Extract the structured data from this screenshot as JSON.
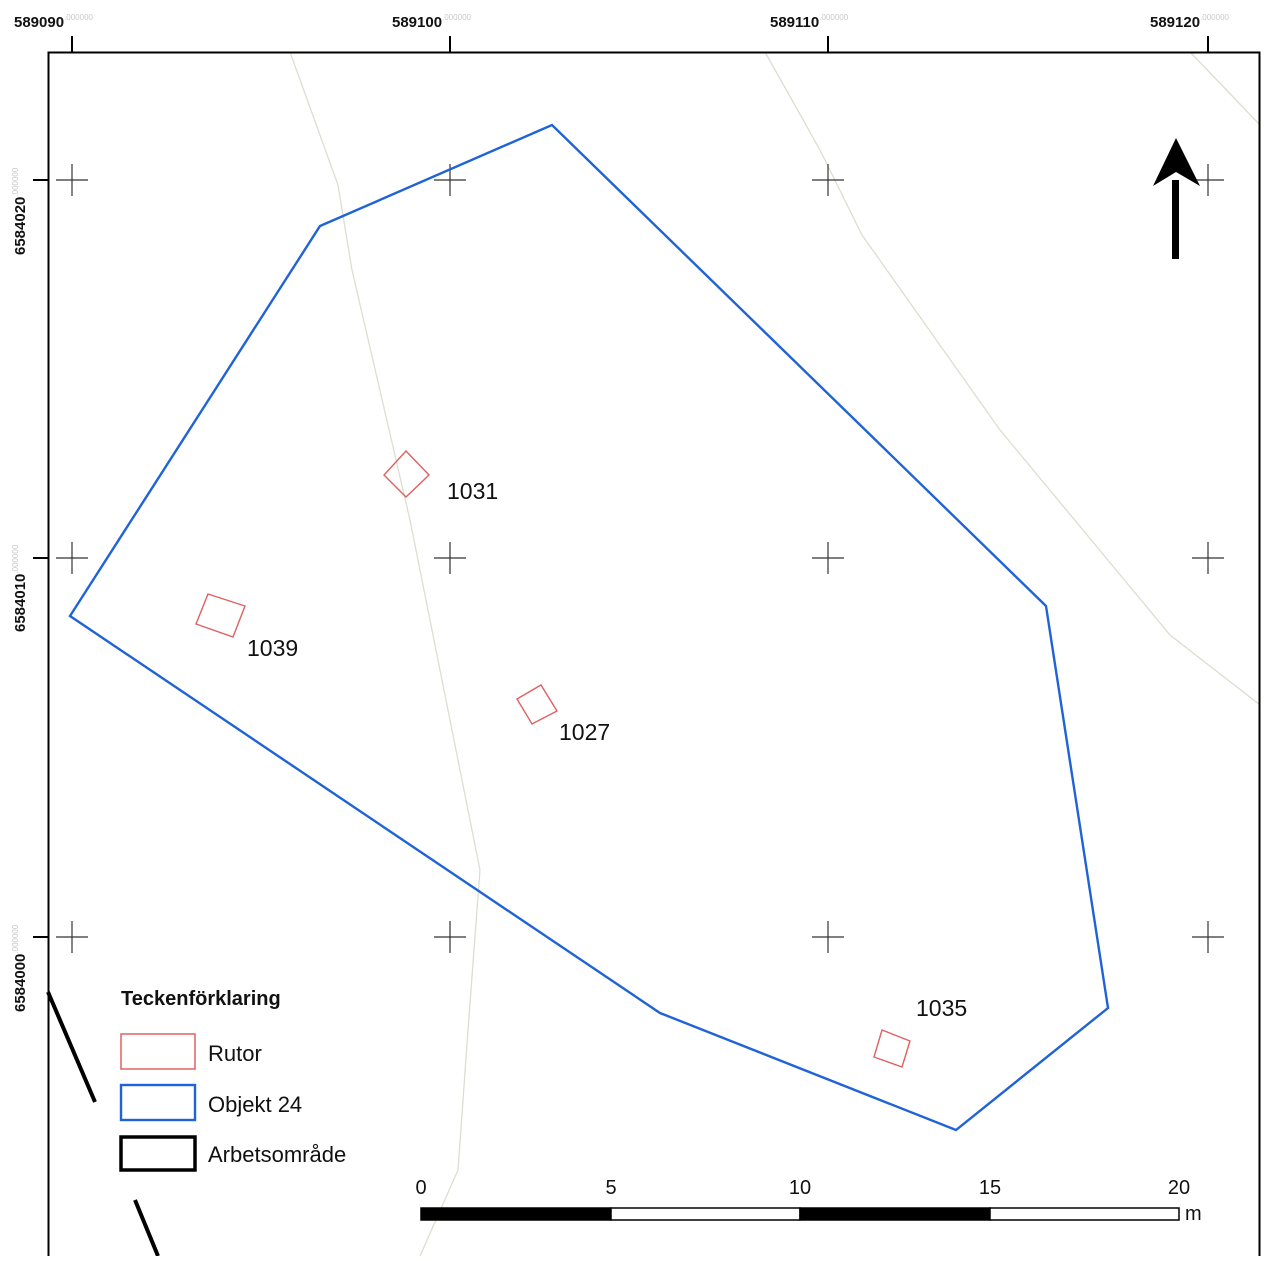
{
  "map": {
    "coordinates": {
      "x_ticks": [
        {
          "main": "589090",
          "dec": ".000000"
        },
        {
          "main": "589100",
          "dec": ".000000"
        },
        {
          "main": "589110",
          "dec": ".000000"
        },
        {
          "main": "589120",
          "dec": ".000000"
        }
      ],
      "y_ticks": [
        {
          "main": "6584020",
          "dec": ".000000"
        },
        {
          "main": "6584010",
          "dec": ".000000"
        },
        {
          "main": "6584000",
          "dec": ".000000"
        }
      ]
    },
    "squares": [
      {
        "id": "square-1031",
        "label": "1031"
      },
      {
        "id": "square-1039",
        "label": "1039"
      },
      {
        "id": "square-1027",
        "label": "1027"
      },
      {
        "id": "square-1035",
        "label": "1035"
      }
    ],
    "north_arrow": "north-arrow-icon",
    "legend": {
      "title": "Teckenförklaring",
      "items": [
        {
          "label": "Rutor",
          "color": "#e06060"
        },
        {
          "label": "Objekt 24",
          "color": "#1f63d6"
        },
        {
          "label": "Arbetsområde",
          "color": "#000000"
        }
      ]
    },
    "scale_bar": {
      "labels": [
        "0",
        "5",
        "10",
        "15",
        "20"
      ],
      "unit": "m"
    },
    "colors": {
      "polygon": "#1f63d6",
      "squares": "#e06060",
      "contours": "#ddddcc",
      "frame": "#000000"
    }
  }
}
